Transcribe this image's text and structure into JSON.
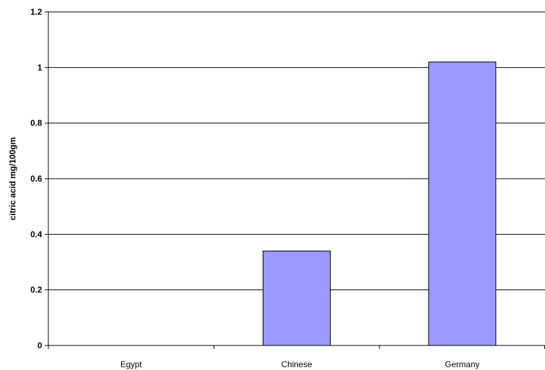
{
  "chart_data": {
    "type": "bar",
    "title": "",
    "xlabel": "",
    "ylabel": "citric acid mg/100gm",
    "categories": [
      "Egypt",
      "Chinese",
      "Germany"
    ],
    "values": [
      0,
      0.34,
      1.02
    ],
    "ylim": [
      0,
      1.2
    ],
    "yticks": [
      "0",
      "0.2",
      "0.4",
      "0.6",
      "0.8",
      "1",
      "1.2"
    ],
    "grid": true,
    "legend": "none",
    "bar_color": "#9999ff",
    "bar_edge_color": "#000000"
  }
}
